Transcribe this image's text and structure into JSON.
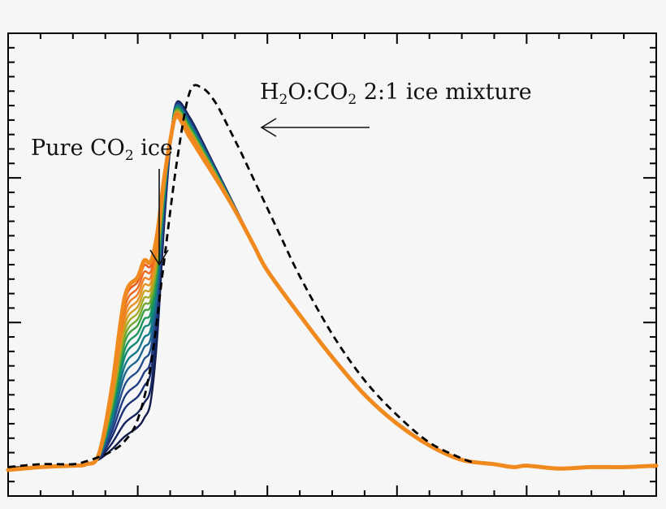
{
  "chart_data": {
    "type": "line",
    "title": "",
    "xlabel": "",
    "ylabel": "",
    "xlim": [
      0,
      100
    ],
    "ylim": [
      -0.2,
      3.0
    ],
    "grid": false,
    "annotations": [
      {
        "id": "mixture",
        "text": "H2O:CO2 2:1 ice mixture",
        "parts": [
          "H",
          "2",
          "O:CO",
          "2",
          " 2:1 ice mixture"
        ]
      },
      {
        "id": "pure",
        "text": "Pure CO2 ice",
        "parts": [
          "Pure CO",
          "2",
          " ice"
        ]
      }
    ],
    "series_colors": [
      "#111a4a",
      "#15245e",
      "#1b2f74",
      "#213c84",
      "#23508c",
      "#1d6690",
      "#157a88",
      "#128876",
      "#1a955c",
      "#3ea043",
      "#72a930",
      "#a3aa24",
      "#cea01f",
      "#e89222",
      "#f07f22",
      "#ef6a20",
      "#ea581f",
      "#f08a1e"
    ],
    "dashed_series": {
      "name": "H2O:CO2 2:1 ice mixture",
      "x": [
        0,
        5,
        10,
        12,
        14,
        16,
        18,
        20,
        22,
        24,
        26,
        28,
        30,
        32,
        34,
        35,
        36,
        38,
        40,
        42,
        45,
        50,
        55,
        60,
        65,
        70,
        72
      ],
      "y": [
        0.0,
        0.02,
        0.02,
        0.04,
        0.07,
        0.11,
        0.18,
        0.33,
        0.7,
        1.4,
        2.1,
        2.59,
        2.62,
        2.52,
        2.35,
        2.26,
        2.17,
        1.98,
        1.79,
        1.6,
        1.32,
        0.92,
        0.6,
        0.36,
        0.17,
        0.06,
        0.03
      ]
    },
    "solid_series": {
      "x": [
        0,
        5,
        10,
        12,
        14,
        16,
        18,
        20,
        21,
        22,
        23,
        24,
        25,
        26,
        28,
        30,
        32,
        34,
        36,
        38,
        40,
        45,
        50,
        55,
        60,
        65,
        70,
        75,
        78,
        80,
        85,
        90,
        95,
        100
      ],
      "base": [
        -0.02,
        0.0,
        0.01,
        0.02,
        0.05,
        0.1,
        0.16,
        0.22,
        0.28,
        0.4,
        0.85,
        1.6,
        2.2,
        2.52,
        2.42,
        2.25,
        2.07,
        1.89,
        1.71,
        1.53,
        1.36,
        1.05,
        0.76,
        0.5,
        0.3,
        0.15,
        0.05,
        0.02,
        0.0,
        0.01,
        -0.01,
        0.0,
        0.0,
        0.01
      ],
      "bump": [
        0,
        0,
        0,
        0,
        0.04,
        0.45,
        1.03,
        1.13,
        1.2,
        1.09,
        0.85,
        0.48,
        0.18,
        0.04,
        0,
        0,
        0,
        0,
        0,
        0,
        0,
        0,
        0,
        0,
        0,
        0,
        0,
        0,
        0,
        0,
        0,
        0,
        0,
        0
      ],
      "bump_levels": [
        0.05,
        0.14,
        0.24,
        0.32,
        0.4,
        0.47,
        0.53,
        0.59,
        0.64,
        0.69,
        0.73,
        0.77,
        0.81,
        0.85,
        0.89,
        0.93,
        0.97,
        1.0
      ],
      "peak_drop": 0.14
    }
  }
}
